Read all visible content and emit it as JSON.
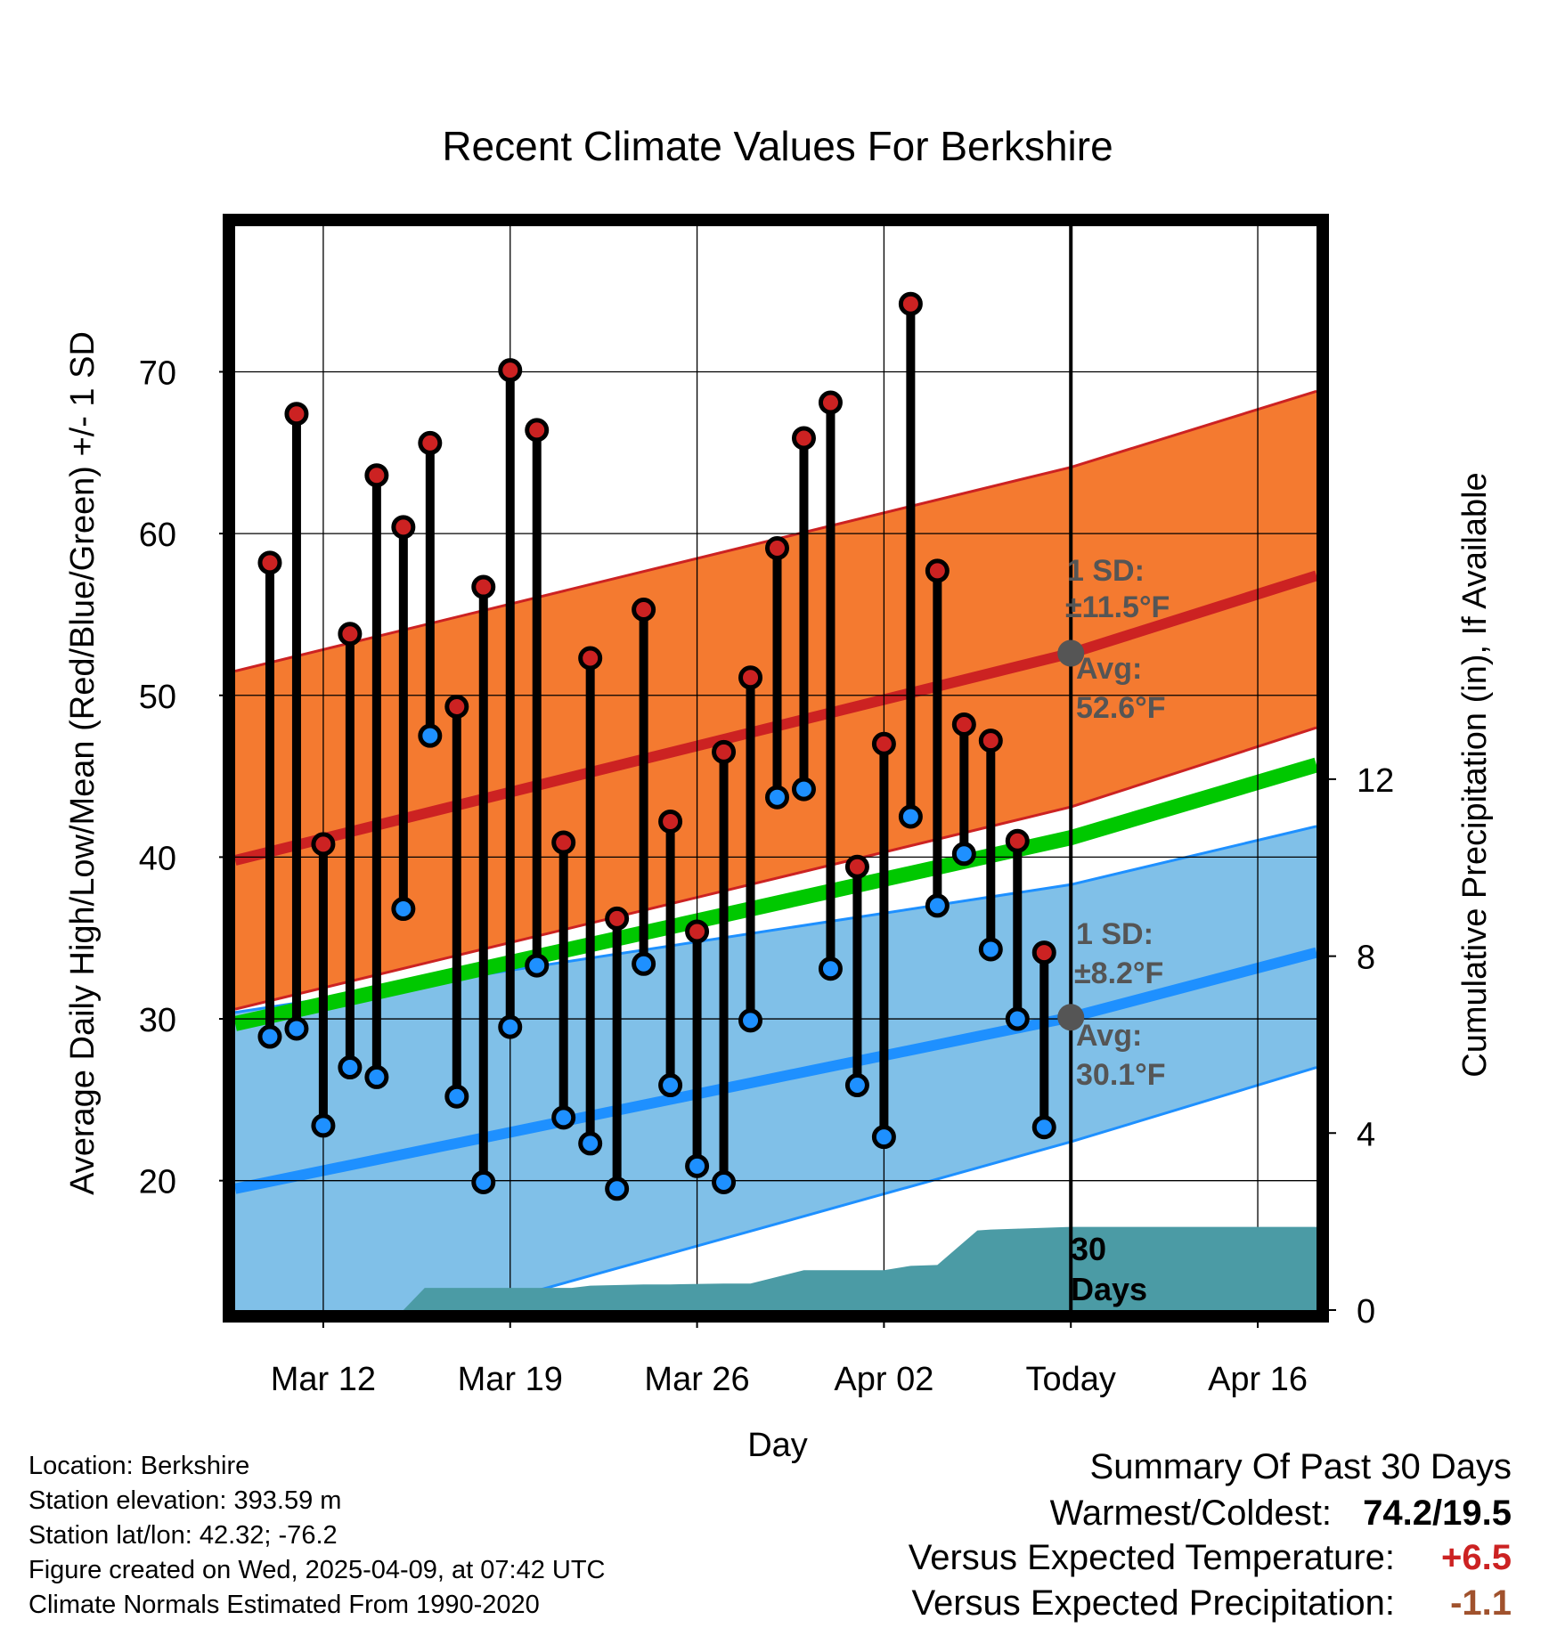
{
  "colors": {
    "high": "#cc2222",
    "low": "#1e90ff",
    "high_band": "#f47a30",
    "low_band": "#80c0e8",
    "mean": "#00c800",
    "precip": "#4b9ba5",
    "today_dot": "#555555",
    "warm_value": "#cc2222",
    "precip_value": "#a0522d"
  },
  "chart_data": {
    "type": "line",
    "title": "Recent Climate Values For Berkshire",
    "xlabel": "Day",
    "ylabel": "Average Daily High/Low/Mean (Red/Blue/Green) +/- 1 SD",
    "y2label": "Cumulative Precipitation (in), If Available",
    "ylim": [
      12,
      79
    ],
    "y2lim": [
      0,
      24.5
    ],
    "xlim": [
      -3.3,
      37.2
    ],
    "yticks": [
      20,
      30,
      40,
      50,
      60,
      70
    ],
    "y2ticks": [
      0,
      4,
      8,
      12
    ],
    "xticks": [
      {
        "x": 0,
        "label": "Mar 12"
      },
      {
        "x": 7,
        "label": "Mar 19"
      },
      {
        "x": 14,
        "label": "Mar 26"
      },
      {
        "x": 21,
        "label": "Apr 02"
      },
      {
        "x": 28,
        "label": "Today"
      },
      {
        "x": 35,
        "label": "Apr 16"
      }
    ],
    "today_x": 28,
    "normals": {
      "x": [
        -3.3,
        28,
        37.2
      ],
      "high_mean": [
        39.8,
        52.6,
        57.4
      ],
      "high_upper": [
        51.5,
        64.1,
        68.8
      ],
      "high_lower": [
        30.6,
        43.1,
        48.0
      ],
      "low_mean": [
        19.5,
        30.1,
        34.1
      ],
      "low_upper": [
        30.4,
        38.3,
        41.9
      ],
      "low_lower": [
        8.0,
        22.4,
        27.0
      ],
      "mean_normal": [
        29.7,
        41.2,
        45.7
      ]
    },
    "observed": {
      "x": [
        -2,
        -1,
        0,
        1,
        2,
        3,
        4,
        5,
        6,
        7,
        8,
        9,
        10,
        11,
        12,
        13,
        14,
        15,
        16,
        17,
        18,
        19,
        20,
        21,
        22,
        23,
        24,
        25,
        26,
        27
      ],
      "high": [
        58.2,
        67.4,
        40.8,
        53.8,
        63.6,
        60.4,
        65.6,
        49.3,
        56.7,
        70.1,
        66.4,
        40.9,
        52.3,
        36.2,
        55.3,
        42.2,
        35.4,
        46.5,
        51.1,
        59.1,
        65.9,
        68.1,
        39.4,
        47.0,
        74.2,
        57.7,
        48.2,
        47.2,
        41.0,
        34.1
      ],
      "low": [
        28.9,
        29.4,
        23.4,
        27.0,
        26.4,
        36.8,
        47.5,
        25.2,
        19.9,
        29.5,
        33.3,
        23.9,
        22.3,
        19.5,
        33.4,
        25.9,
        20.9,
        19.9,
        29.9,
        43.7,
        44.2,
        33.1,
        25.9,
        22.7,
        42.5,
        37.0,
        40.2,
        34.3,
        30.0,
        23.3
      ]
    },
    "precip_cumulative": {
      "x": [
        -3.3,
        0.5,
        1.0,
        3.0,
        3.8,
        7.0,
        9.0,
        9.3,
        10.0,
        12.0,
        13.0,
        15.0,
        16.0,
        18.0,
        19.0,
        21.0,
        22.0,
        23.0,
        24.5,
        25.0,
        26.0,
        28.0,
        37.2
      ],
      "values": [
        0,
        0,
        0,
        0,
        0.5,
        0.5,
        0.5,
        0.5,
        0.55,
        0.58,
        0.58,
        0.6,
        0.6,
        0.9,
        0.9,
        0.9,
        1.0,
        1.02,
        1.8,
        1.82,
        1.84,
        1.88,
        1.88
      ]
    },
    "annotations": {
      "high_sd_label": "1 SD:",
      "high_sd_value": "±11.5°F",
      "high_avg_label": "Avg:",
      "high_avg_value": "52.6°F",
      "high_avg": 52.6,
      "low_sd_label": "1 SD:",
      "low_sd_value": "±8.2°F",
      "low_avg_label": "Avg:",
      "low_avg_value": "30.1°F",
      "low_avg": 30.1,
      "days_line1": "30",
      "days_line2": "Days"
    }
  },
  "footer": {
    "location": "Location: Berkshire",
    "elevation": "Station elevation: 393.59 m",
    "latlon": "Station lat/lon: 42.32; -76.2",
    "created": "Figure created on Wed, 2025-04-09, at 07:42 UTC",
    "normals": "Climate Normals Estimated From 1990-2020"
  },
  "summary": {
    "heading": "Summary Of Past 30 Days",
    "warm_cold_label": "Warmest/Coldest:",
    "warm_cold_value": "74.2/19.5",
    "temp_label": "Versus Expected Temperature:",
    "temp_value": "+6.5",
    "precip_label": "Versus Expected Precipitation:",
    "precip_value": "-1.1"
  }
}
